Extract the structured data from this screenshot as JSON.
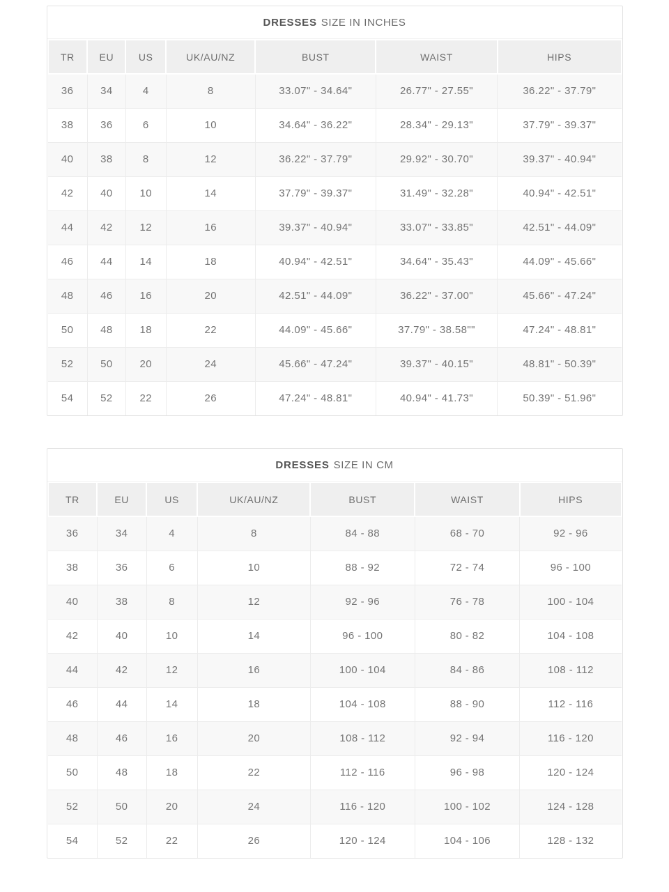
{
  "colors": {
    "border-outer": "#e3e3e3",
    "border-cell": "#ececec",
    "header-bg": "#efefef",
    "row-alt-bg": "#f8f8f8",
    "text-cell": "#757575",
    "text-header": "#6d6d6d",
    "text-title": "#6b6b6b",
    "text-title-bold": "#555555",
    "page-bg": "#ffffff"
  },
  "chart_data": [
    {
      "type": "table",
      "title": "DRESSES SIZE IN INCHES",
      "title_bold": "DRESSES",
      "title_rest": "SIZE IN INCHES",
      "columns": [
        "TR",
        "EU",
        "US",
        "UK/AU/NZ",
        "BUST",
        "WAIST",
        "HIPS"
      ],
      "rows": [
        [
          "36",
          "34",
          "4",
          "8",
          "33.07\" - 34.64\"",
          "26.77\" - 27.55\"",
          "36.22\" - 37.79\""
        ],
        [
          "38",
          "36",
          "6",
          "10",
          "34.64\" - 36.22\"",
          "28.34\" - 29.13\"",
          "37.79\" - 39.37\""
        ],
        [
          "40",
          "38",
          "8",
          "12",
          "36.22\" - 37.79\"",
          "29.92\" - 30.70\"",
          "39.37\" - 40.94\""
        ],
        [
          "42",
          "40",
          "10",
          "14",
          "37.79\" - 39.37\"",
          "31.49\" - 32.28\"",
          "40.94\" - 42.51\""
        ],
        [
          "44",
          "42",
          "12",
          "16",
          "39.37\" - 40.94\"",
          "33.07\" - 33.85\"",
          "42.51\" - 44.09\""
        ],
        [
          "46",
          "44",
          "14",
          "18",
          "40.94\" - 42.51\"",
          "34.64\" - 35.43\"",
          "44.09\" - 45.66\""
        ],
        [
          "48",
          "46",
          "16",
          "20",
          "42.51\" - 44.09\"",
          "36.22\" - 37.00\"",
          "45.66\" - 47.24\""
        ],
        [
          "50",
          "48",
          "18",
          "22",
          "44.09\" - 45.66\"",
          "37.79\" - 38.58\"\"",
          "47.24\" - 48.81\""
        ],
        [
          "52",
          "50",
          "20",
          "24",
          "45.66\" - 47.24\"",
          "39.37\" - 40.15\"",
          "48.81\" - 50.39\""
        ],
        [
          "54",
          "52",
          "22",
          "26",
          "47.24\" - 48.81\"",
          "40.94\" - 41.73\"",
          "50.39\" - 51.96\""
        ]
      ]
    },
    {
      "type": "table",
      "title": "DRESSES SIZE IN CM",
      "title_bold": "DRESSES",
      "title_rest": "SIZE IN CM",
      "columns": [
        "TR",
        "EU",
        "US",
        "UK/AU/NZ",
        "BUST",
        "WAIST",
        "HIPS"
      ],
      "rows": [
        [
          "36",
          "34",
          "4",
          "8",
          "84 - 88",
          "68 - 70",
          "92 - 96"
        ],
        [
          "38",
          "36",
          "6",
          "10",
          "88 - 92",
          "72 - 74",
          "96 - 100"
        ],
        [
          "40",
          "38",
          "8",
          "12",
          "92 - 96",
          "76 - 78",
          "100 - 104"
        ],
        [
          "42",
          "40",
          "10",
          "14",
          "96 - 100",
          "80 - 82",
          "104 - 108"
        ],
        [
          "44",
          "42",
          "12",
          "16",
          "100 - 104",
          "84 - 86",
          "108 - 112"
        ],
        [
          "46",
          "44",
          "14",
          "18",
          "104 - 108",
          "88 - 90",
          "112 - 116"
        ],
        [
          "48",
          "46",
          "16",
          "20",
          "108 - 112",
          "92 - 94",
          "116 - 120"
        ],
        [
          "50",
          "48",
          "18",
          "22",
          "112 - 116",
          "96 - 98",
          "120 - 124"
        ],
        [
          "52",
          "50",
          "20",
          "24",
          "116 - 120",
          "100 - 102",
          "124 - 128"
        ],
        [
          "54",
          "52",
          "22",
          "26",
          "120 - 124",
          "104 - 106",
          "128 - 132"
        ]
      ]
    }
  ]
}
